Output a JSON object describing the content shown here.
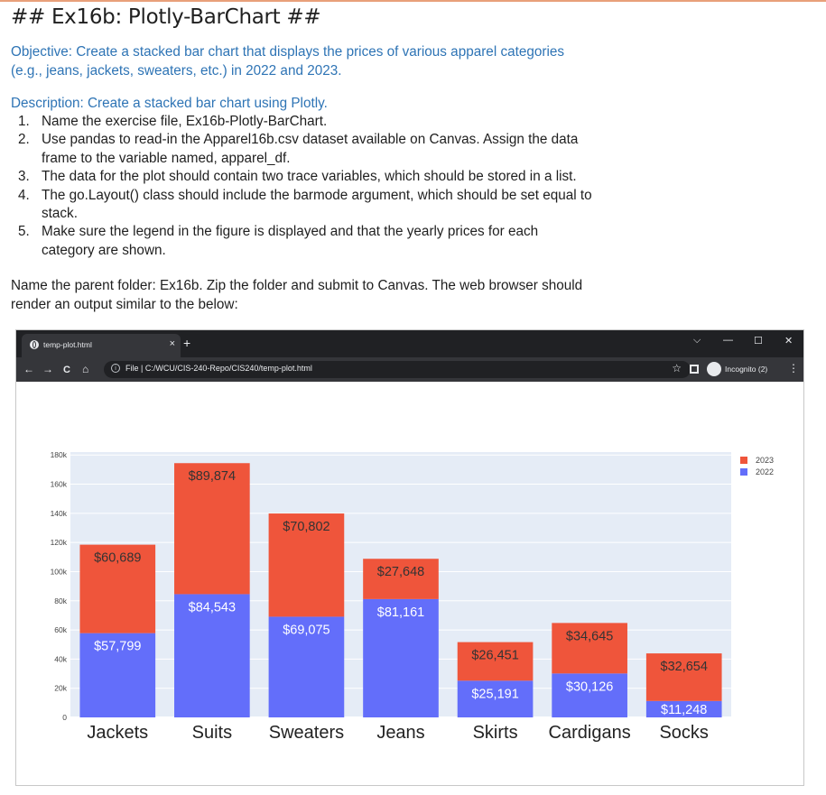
{
  "doc": {
    "title": "## Ex16b: Plotly-BarChart ##",
    "objective_label": "Objective",
    "objective_line1": ": Create a stacked bar chart that displays the prices of various apparel categories",
    "objective_line2": "(e.g., jeans, jackets, sweaters, etc.) in 2022 and 2023.",
    "description_label": "Description",
    "description_text": ": Create a stacked bar chart using Plotly.",
    "steps": [
      {
        "num": "1.",
        "lines": [
          "Name the exercise file, Ex16b-Plotly-BarChart."
        ]
      },
      {
        "num": "2.",
        "lines": [
          "Use pandas to read-in the Apparel16b.csv dataset available on Canvas. Assign the data",
          "frame to the variable named, apparel_df."
        ]
      },
      {
        "num": "3.",
        "lines": [
          "The data for the plot should contain two trace variables, which should be stored in a list."
        ]
      },
      {
        "num": "4.",
        "lines": [
          "The go.Layout() class should include the barmode argument, which should be set equal to",
          "stack."
        ]
      },
      {
        "num": "5.",
        "lines": [
          "Make sure the legend in the figure is displayed and that the yearly prices for each",
          "category are shown."
        ]
      }
    ],
    "closing_line1": "Name the parent folder: Ex16b. Zip the folder and submit to Canvas. The web browser should",
    "closing_line2": "render an output similar to the below:"
  },
  "browser": {
    "tab_title": "temp-plot.html",
    "tab_close": "×",
    "new_tab": "+",
    "win_dropdown": "⌵",
    "win_minimize": "—",
    "win_maximize": "☐",
    "win_close": "✕",
    "back": "←",
    "forward": "→",
    "reload": "C",
    "home": "⌂",
    "info": "i",
    "url": "File  |  C:/WCU/CIS-240-Repo/CIS240/temp-plot.html",
    "star": "☆",
    "incognito_label": "Incognito (2)",
    "menu": "⋮"
  },
  "chart_data": {
    "type": "bar",
    "barmode": "stack",
    "categories": [
      "Jackets",
      "Suits",
      "Sweaters",
      "Jeans",
      "Skirts",
      "Cardigans",
      "Socks"
    ],
    "series": [
      {
        "name": "2022",
        "color": "#636efa",
        "values": [
          57799,
          84543,
          69075,
          81161,
          25191,
          30126,
          11248
        ],
        "labels": [
          "$57,799",
          "$84,543",
          "$69,075",
          "$81,161",
          "$25,191",
          "$30,126",
          "$11,248"
        ]
      },
      {
        "name": "2023",
        "color": "#ef553b",
        "values": [
          60689,
          89874,
          70802,
          27648,
          26451,
          34645,
          32654
        ],
        "labels": [
          "$60,689",
          "$89,874",
          "$70,802",
          "$27,648",
          "$26,451",
          "$34,645",
          "$32,654"
        ]
      }
    ],
    "ylim": [
      0,
      182000
    ],
    "yticks": [
      0,
      20000,
      40000,
      60000,
      80000,
      100000,
      120000,
      140000,
      160000,
      180000
    ],
    "ytick_labels": [
      "0",
      "20k",
      "40k",
      "60k",
      "80k",
      "100k",
      "120k",
      "140k",
      "160k",
      "180k"
    ],
    "legend_order": [
      "2023",
      "2022"
    ],
    "legend_position": "top-right",
    "grid": true,
    "plot_bgcolor": "#e5ecf6"
  }
}
